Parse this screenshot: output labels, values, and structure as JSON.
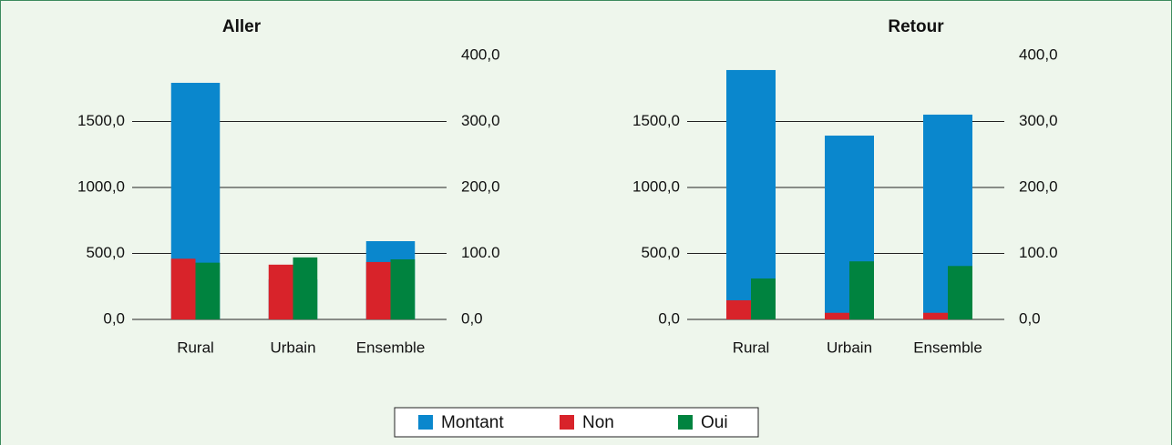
{
  "chart_data": {
    "type": "bar",
    "categories": [
      "Rural",
      "Urbain",
      "Ensemble"
    ],
    "ylim": [
      0,
      2000
    ],
    "yticks": [
      {
        "value": 0,
        "label": "0,0"
      },
      {
        "value": 500,
        "label": "500,0"
      },
      {
        "value": 1000,
        "label": "1000,0"
      },
      {
        "value": 1500,
        "label": "1500,0"
      }
    ],
    "y2lim": [
      0,
      400
    ],
    "y2ticks": [
      {
        "value": 0,
        "label": "0,0"
      },
      {
        "value": 100,
        "label": "100.0"
      },
      {
        "value": 200,
        "label": "200,0"
      },
      {
        "value": 300,
        "label": "300,0"
      },
      {
        "value": 400,
        "label": "400,0"
      }
    ],
    "legend": "bottom",
    "series": [
      {
        "name": "Montant",
        "color": "#0a87cd",
        "axis": "y"
      },
      {
        "name": "Non",
        "color": "#d8232a",
        "axis": "y2"
      },
      {
        "name": "Oui",
        "color": "#00833f",
        "axis": "y2"
      }
    ],
    "panels": [
      {
        "title": "Aller",
        "series": [
          {
            "values": [
              1793,
              303,
              593
            ]
          },
          {
            "values": [
              92,
              83,
              87
            ]
          },
          {
            "values": [
              86,
              94,
              91
            ]
          }
        ]
      },
      {
        "title": "Retour",
        "series": [
          {
            "values": [
              1890,
              1393,
              1552
            ]
          },
          {
            "values": [
              29,
              10,
              10
            ]
          },
          {
            "values": [
              62,
              88,
              81
            ]
          }
        ]
      }
    ]
  }
}
